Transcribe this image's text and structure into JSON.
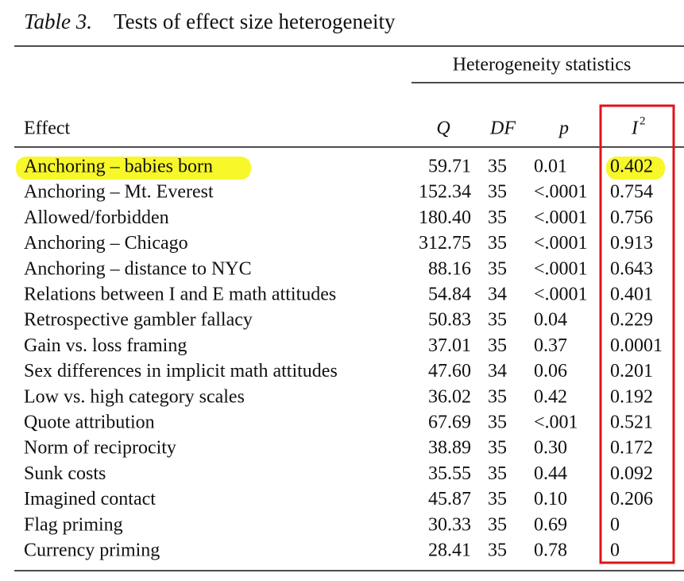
{
  "caption": {
    "label": "Table 3.",
    "title": "Tests of effect size heterogeneity"
  },
  "table": {
    "group_header": "Heterogeneity statistics",
    "columns": {
      "effect": "Effect",
      "q": "Q",
      "df": "DF",
      "p": "p",
      "i2": {
        "base": "I",
        "sup": "2"
      }
    },
    "rows": [
      [
        "Anchoring – babies born",
        "59.71",
        "35",
        "0.01",
        "0.402"
      ],
      [
        "Anchoring – Mt. Everest",
        "152.34",
        "35",
        "<.0001",
        "0.754"
      ],
      [
        "Allowed/forbidden",
        "180.40",
        "35",
        "<.0001",
        "0.756"
      ],
      [
        "Anchoring – Chicago",
        "312.75",
        "35",
        "<.0001",
        "0.913"
      ],
      [
        "Anchoring – distance to NYC",
        "88.16",
        "35",
        "<.0001",
        "0.643"
      ],
      [
        "Relations between I and E math attitudes",
        "54.84",
        "34",
        "<.0001",
        "0.401"
      ],
      [
        "Retrospective gambler fallacy",
        "50.83",
        "35",
        "0.04",
        "0.229"
      ],
      [
        "Gain vs. loss framing",
        "37.01",
        "35",
        "0.37",
        "0.0001"
      ],
      [
        "Sex differences in implicit math attitudes",
        "47.60",
        "34",
        "0.06",
        "0.201"
      ],
      [
        "Low vs. high category scales",
        "36.02",
        "35",
        "0.42",
        "0.192"
      ],
      [
        "Quote attribution",
        "67.69",
        "35",
        "<.001",
        "0.521"
      ],
      [
        "Norm of reciprocity",
        "38.89",
        "35",
        "0.30",
        "0.172"
      ],
      [
        "Sunk costs",
        "35.55",
        "35",
        "0.44",
        "0.092"
      ],
      [
        "Imagined contact",
        "45.87",
        "35",
        "0.10",
        "0.206"
      ],
      [
        "Flag priming",
        "30.33",
        "35",
        "0.69",
        "0"
      ],
      [
        "Currency priming",
        "28.41",
        "35",
        "0.78",
        "0"
      ]
    ]
  }
}
